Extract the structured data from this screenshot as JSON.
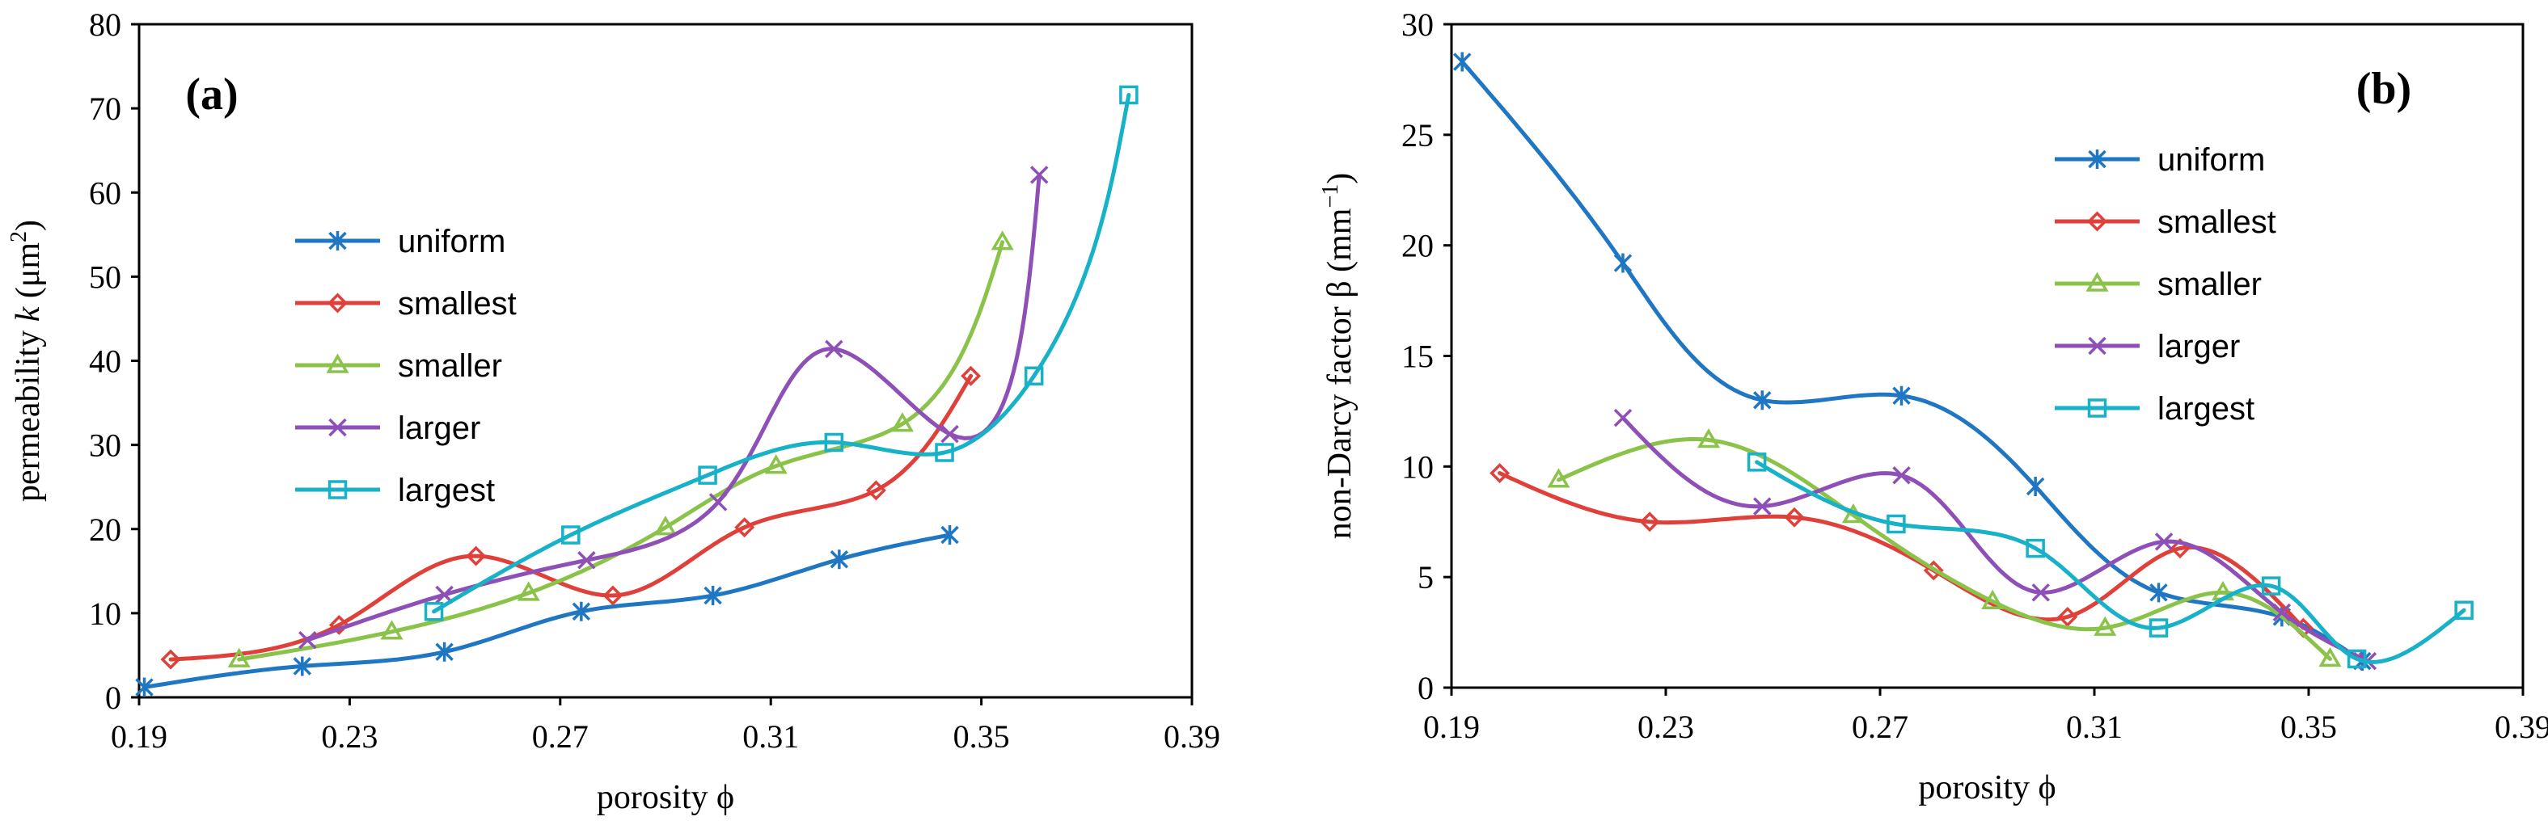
{
  "chart_data": [
    {
      "type": "line",
      "panel_label": "(a)",
      "xlabel": "porosity ϕ",
      "ylabel_parts": [
        "permeability ",
        "k",
        " (μm",
        "2",
        ")"
      ],
      "xlim": [
        0.19,
        0.39
      ],
      "ylim": [
        0,
        80
      ],
      "xticks": [
        0.19,
        0.23,
        0.27,
        0.31,
        0.35,
        0.39
      ],
      "xtick_labels": [
        "0.19",
        "0.23",
        "0.27",
        "0.31",
        "0.35",
        "0.39"
      ],
      "yticks": [
        0,
        10,
        20,
        30,
        40,
        50,
        60,
        70,
        80
      ],
      "ytick_labels": [
        "0",
        "10",
        "20",
        "30",
        "40",
        "50",
        "60",
        "70",
        "80"
      ],
      "legend_position": "center-left",
      "series": [
        {
          "name": "uniform",
          "color": "#1f77c4",
          "marker": "asterisk",
          "x": [
            0.191,
            0.221,
            0.248,
            0.274,
            0.299,
            0.323,
            0.344
          ],
          "y": [
            1.2,
            3.7,
            5.4,
            10.2,
            12.1,
            16.4,
            19.3
          ]
        },
        {
          "name": "smallest",
          "color": "#e0403a",
          "marker": "diamond",
          "x": [
            0.196,
            0.228,
            0.254,
            0.28,
            0.305,
            0.33,
            0.348
          ],
          "y": [
            4.5,
            8.6,
            16.8,
            12.1,
            20.2,
            24.6,
            38.2
          ]
        },
        {
          "name": "smaller",
          "color": "#8bc34a",
          "marker": "triangle",
          "x": [
            0.209,
            0.238,
            0.264,
            0.29,
            0.311,
            0.335,
            0.354
          ],
          "y": [
            4.5,
            7.8,
            12.4,
            20.2,
            27.5,
            32.5,
            54.1
          ]
        },
        {
          "name": "larger",
          "color": "#8e4fb6",
          "marker": "cross",
          "x": [
            0.222,
            0.248,
            0.275,
            0.3,
            0.322,
            0.344,
            0.361
          ],
          "y": [
            6.8,
            12.2,
            16.3,
            23.2,
            41.4,
            31.3,
            62.1
          ]
        },
        {
          "name": "largest",
          "color": "#17b1c8",
          "marker": "square",
          "x": [
            0.246,
            0.272,
            0.298,
            0.322,
            0.343,
            0.36,
            0.378
          ],
          "y": [
            10.2,
            19.3,
            26.4,
            30.3,
            29.1,
            38.2,
            71.6
          ]
        }
      ]
    },
    {
      "type": "line",
      "panel_label": "(b)",
      "xlabel": "porosity ϕ",
      "ylabel_parts": [
        "non-Darcy factor β (mm",
        "−1",
        ")"
      ],
      "xlim": [
        0.19,
        0.39
      ],
      "ylim": [
        0,
        30
      ],
      "xticks": [
        0.19,
        0.23,
        0.27,
        0.31,
        0.35,
        0.39
      ],
      "xtick_labels": [
        "0.19",
        "0.23",
        "0.27",
        "0.31",
        "0.35",
        "0.39"
      ],
      "yticks": [
        0,
        5,
        10,
        15,
        20,
        25,
        30
      ],
      "ytick_labels": [
        "0",
        "5",
        "10",
        "15",
        "20",
        "25",
        "30"
      ],
      "legend_position": "top-center",
      "series": [
        {
          "name": "uniform",
          "color": "#1f77c4",
          "marker": "asterisk",
          "x": [
            0.192,
            0.222,
            0.248,
            0.274,
            0.299,
            0.322,
            0.345,
            0.36
          ],
          "y": [
            28.3,
            19.2,
            13.0,
            13.2,
            9.1,
            4.3,
            3.2,
            1.2
          ]
        },
        {
          "name": "smallest",
          "color": "#e0403a",
          "marker": "diamond",
          "x": [
            0.199,
            0.227,
            0.254,
            0.28,
            0.305,
            0.326,
            0.349
          ],
          "y": [
            9.7,
            7.5,
            7.7,
            5.3,
            3.2,
            6.3,
            2.7
          ]
        },
        {
          "name": "smaller",
          "color": "#8bc34a",
          "marker": "triangle",
          "x": [
            0.21,
            0.238,
            0.265,
            0.291,
            0.312,
            0.334,
            0.354
          ],
          "y": [
            9.4,
            11.2,
            7.8,
            3.9,
            2.7,
            4.3,
            1.3
          ]
        },
        {
          "name": "larger",
          "color": "#8e4fb6",
          "marker": "cross",
          "x": [
            0.222,
            0.248,
            0.274,
            0.3,
            0.323,
            0.345,
            0.361
          ],
          "y": [
            12.2,
            8.2,
            9.6,
            4.3,
            6.6,
            3.4,
            1.2
          ]
        },
        {
          "name": "largest",
          "color": "#17b1c8",
          "marker": "square",
          "x": [
            0.247,
            0.273,
            0.299,
            0.322,
            0.343,
            0.359,
            0.379
          ],
          "y": [
            10.2,
            7.4,
            6.3,
            2.7,
            4.6,
            1.3,
            3.5
          ]
        }
      ]
    }
  ]
}
